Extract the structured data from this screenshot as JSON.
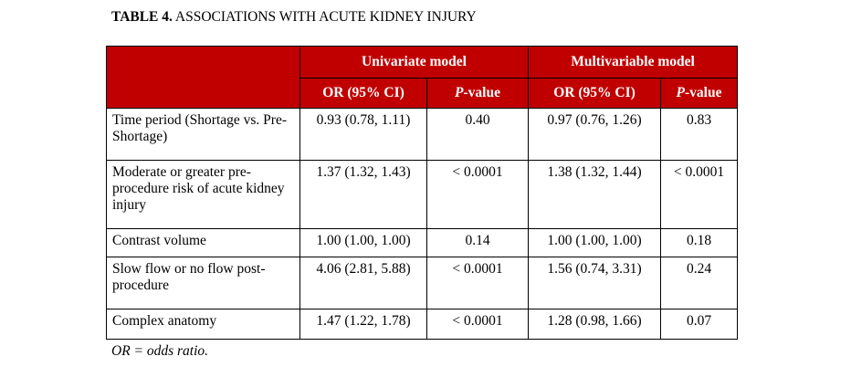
{
  "title": {
    "bold_part": "TABLE 4.",
    "rest": " ASSOCIATIONS WITH ACUTE KIDNEY INJURY"
  },
  "table": {
    "groups": {
      "univariate": "Univariate model",
      "multivariable": "Multivariable model"
    },
    "subheaders": {
      "or": "OR (95% CI)",
      "p_italic": "P",
      "p_rest": "-value"
    },
    "rows": [
      {
        "label": "Time period (Shortage vs. Pre-Shortage)",
        "uni_or": "0.93 (0.78, 1.11)",
        "uni_p": "0.40",
        "multi_or": "0.97 (0.76, 1.26)",
        "multi_p": "0.83"
      },
      {
        "label": "Moderate or greater pre-procedure risk of acute kidney injury",
        "uni_or": "1.37 (1.32, 1.43)",
        "uni_p": "< 0.0001",
        "multi_or": "1.38 (1.32, 1.44)",
        "multi_p": "< 0.0001"
      },
      {
        "label": "Contrast volume",
        "uni_or": "1.00 (1.00, 1.00)",
        "uni_p": "0.14",
        "multi_or": "1.00 (1.00, 1.00)",
        "multi_p": "0.18"
      },
      {
        "label": "Slow flow or no flow post-procedure",
        "uni_or": "4.06 (2.81, 5.88)",
        "uni_p": "< 0.0001",
        "multi_or": "1.56 (0.74, 3.31)",
        "multi_p": "0.24"
      },
      {
        "label": "Complex anatomy",
        "uni_or": "1.47 (1.22, 1.78)",
        "uni_p": "< 0.0001",
        "multi_or": "1.28 (0.98, 1.66)",
        "multi_p": "0.07"
      }
    ]
  },
  "footnote": "OR = odds ratio.",
  "colors": {
    "header_bg": "#c00000",
    "header_text": "#ffffff"
  }
}
